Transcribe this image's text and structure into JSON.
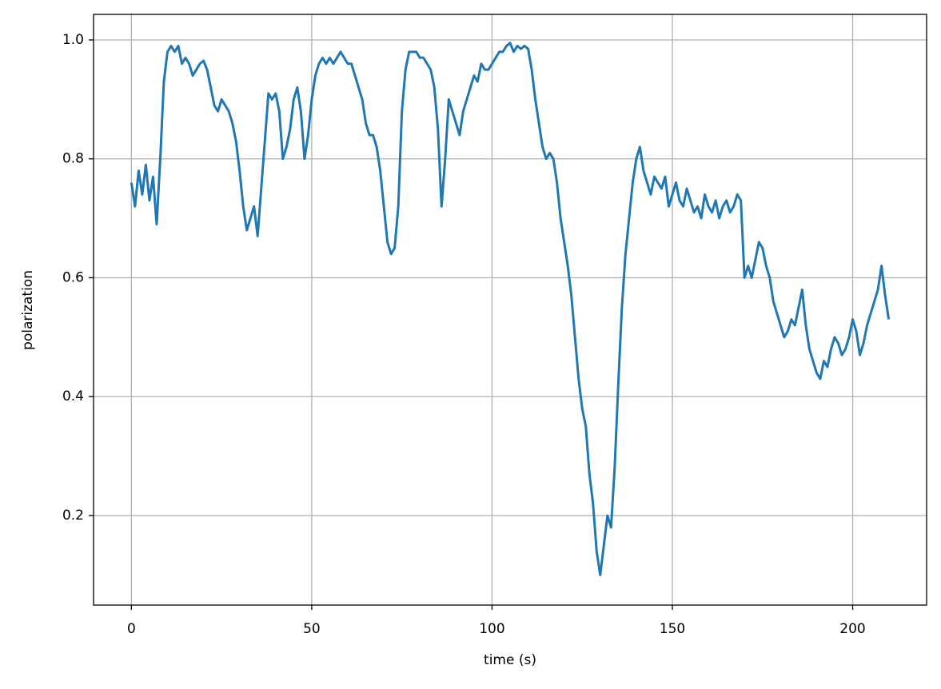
{
  "chart_data": {
    "type": "line",
    "xlabel": "time (s)",
    "ylabel": "polarization",
    "x": [
      0,
      1,
      2,
      3,
      4,
      5,
      6,
      7,
      8,
      9,
      10,
      11,
      12,
      13,
      14,
      15,
      16,
      17,
      18,
      19,
      20,
      21,
      22,
      23,
      24,
      25,
      26,
      27,
      28,
      29,
      30,
      31,
      32,
      33,
      34,
      35,
      36,
      37,
      38,
      39,
      40,
      41,
      42,
      43,
      44,
      45,
      46,
      47,
      48,
      49,
      50,
      51,
      52,
      53,
      54,
      55,
      56,
      57,
      58,
      59,
      60,
      61,
      62,
      63,
      64,
      65,
      66,
      67,
      68,
      69,
      70,
      71,
      72,
      73,
      74,
      75,
      76,
      77,
      78,
      79,
      80,
      81,
      82,
      83,
      84,
      85,
      86,
      87,
      88,
      89,
      90,
      91,
      92,
      93,
      94,
      95,
      96,
      97,
      98,
      99,
      100,
      101,
      102,
      103,
      104,
      105,
      106,
      107,
      108,
      109,
      110,
      111,
      112,
      113,
      114,
      115,
      116,
      117,
      118,
      119,
      120,
      121,
      122,
      123,
      124,
      125,
      126,
      127,
      128,
      129,
      130,
      131,
      132,
      133,
      134,
      135,
      136,
      137,
      138,
      139,
      140,
      141,
      142,
      143,
      144,
      145,
      146,
      147,
      148,
      149,
      150,
      151,
      152,
      153,
      154,
      155,
      156,
      157,
      158,
      159,
      160,
      161,
      162,
      163,
      164,
      165,
      166,
      167,
      168,
      169,
      170,
      171,
      172,
      173,
      174,
      175,
      176,
      177,
      178,
      179,
      180,
      181,
      182,
      183,
      184,
      185,
      186,
      187,
      188,
      189,
      190,
      191,
      192,
      193,
      194,
      195,
      196,
      197,
      198,
      199,
      200,
      201,
      202,
      203,
      204,
      205,
      206,
      207,
      208,
      209,
      210
    ],
    "values": [
      0.76,
      0.72,
      0.78,
      0.74,
      0.79,
      0.73,
      0.77,
      0.69,
      0.8,
      0.93,
      0.98,
      0.99,
      0.98,
      0.99,
      0.96,
      0.97,
      0.96,
      0.94,
      0.95,
      0.96,
      0.965,
      0.95,
      0.92,
      0.89,
      0.88,
      0.9,
      0.89,
      0.88,
      0.86,
      0.83,
      0.78,
      0.72,
      0.68,
      0.7,
      0.72,
      0.67,
      0.75,
      0.83,
      0.91,
      0.9,
      0.91,
      0.88,
      0.8,
      0.82,
      0.85,
      0.9,
      0.92,
      0.88,
      0.8,
      0.84,
      0.9,
      0.94,
      0.96,
      0.97,
      0.96,
      0.97,
      0.96,
      0.97,
      0.98,
      0.97,
      0.96,
      0.96,
      0.94,
      0.92,
      0.9,
      0.86,
      0.84,
      0.84,
      0.82,
      0.78,
      0.72,
      0.66,
      0.64,
      0.65,
      0.72,
      0.88,
      0.95,
      0.98,
      0.98,
      0.98,
      0.97,
      0.97,
      0.96,
      0.95,
      0.92,
      0.85,
      0.72,
      0.8,
      0.9,
      0.88,
      0.86,
      0.84,
      0.88,
      0.9,
      0.92,
      0.94,
      0.93,
      0.96,
      0.95,
      0.95,
      0.96,
      0.97,
      0.98,
      0.98,
      0.99,
      0.995,
      0.98,
      0.99,
      0.985,
      0.99,
      0.985,
      0.95,
      0.9,
      0.86,
      0.82,
      0.8,
      0.81,
      0.8,
      0.76,
      0.7,
      0.66,
      0.62,
      0.57,
      0.5,
      0.43,
      0.38,
      0.35,
      0.27,
      0.22,
      0.14,
      0.1,
      0.15,
      0.2,
      0.18,
      0.28,
      0.42,
      0.55,
      0.64,
      0.7,
      0.76,
      0.8,
      0.82,
      0.78,
      0.76,
      0.74,
      0.77,
      0.76,
      0.75,
      0.77,
      0.72,
      0.74,
      0.76,
      0.73,
      0.72,
      0.75,
      0.73,
      0.71,
      0.72,
      0.7,
      0.74,
      0.72,
      0.71,
      0.73,
      0.7,
      0.72,
      0.73,
      0.71,
      0.72,
      0.74,
      0.73,
      0.6,
      0.62,
      0.6,
      0.63,
      0.66,
      0.65,
      0.62,
      0.6,
      0.56,
      0.54,
      0.52,
      0.5,
      0.51,
      0.53,
      0.52,
      0.55,
      0.58,
      0.52,
      0.48,
      0.46,
      0.44,
      0.43,
      0.46,
      0.45,
      0.48,
      0.5,
      0.49,
      0.47,
      0.48,
      0.5,
      0.53,
      0.51,
      0.47,
      0.49,
      0.52,
      0.54,
      0.56,
      0.58,
      0.62,
      0.57,
      0.53
    ],
    "color": "#1f77b4",
    "xlim": [
      -10.5,
      220.5
    ],
    "xticks": [
      0,
      50,
      100,
      150,
      200
    ],
    "ylim": [
      0.0494,
      1.043
    ],
    "yticks": [
      0.2,
      0.4,
      0.6,
      0.8,
      {
        "value": 1,
        "label": "1.0"
      }
    ],
    "grid": true
  }
}
